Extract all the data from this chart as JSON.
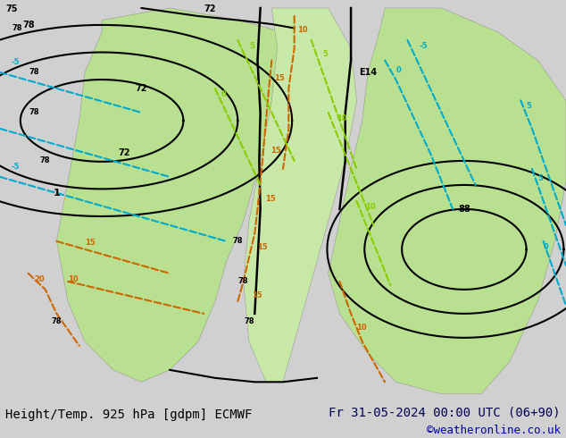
{
  "title_left": "Height/Temp. 925 hPa [gdpm] ECMWF",
  "title_right": "Fr 31-05-2024 00:00 UTC (06+90)",
  "credit": "©weatheronline.co.uk",
  "bg_color": "#e8e8e8",
  "land_color_green": "#b8e090",
  "land_color_light": "#d4edb0",
  "sea_color": "#e0e0e0",
  "font_color_left": "#000000",
  "font_color_right": "#000050",
  "font_color_credit": "#0000aa",
  "font_size_title": 10,
  "font_size_credit": 9,
  "bottom_bar_height": 0.08,
  "contour_height_color": "#000000",
  "contour_temp_pos_color": "#cc6600",
  "contour_temp_neg_color": "#00aacc",
  "contour_temp_zero_color": "#88cc00",
  "contour_zero_color": "#88cc00"
}
